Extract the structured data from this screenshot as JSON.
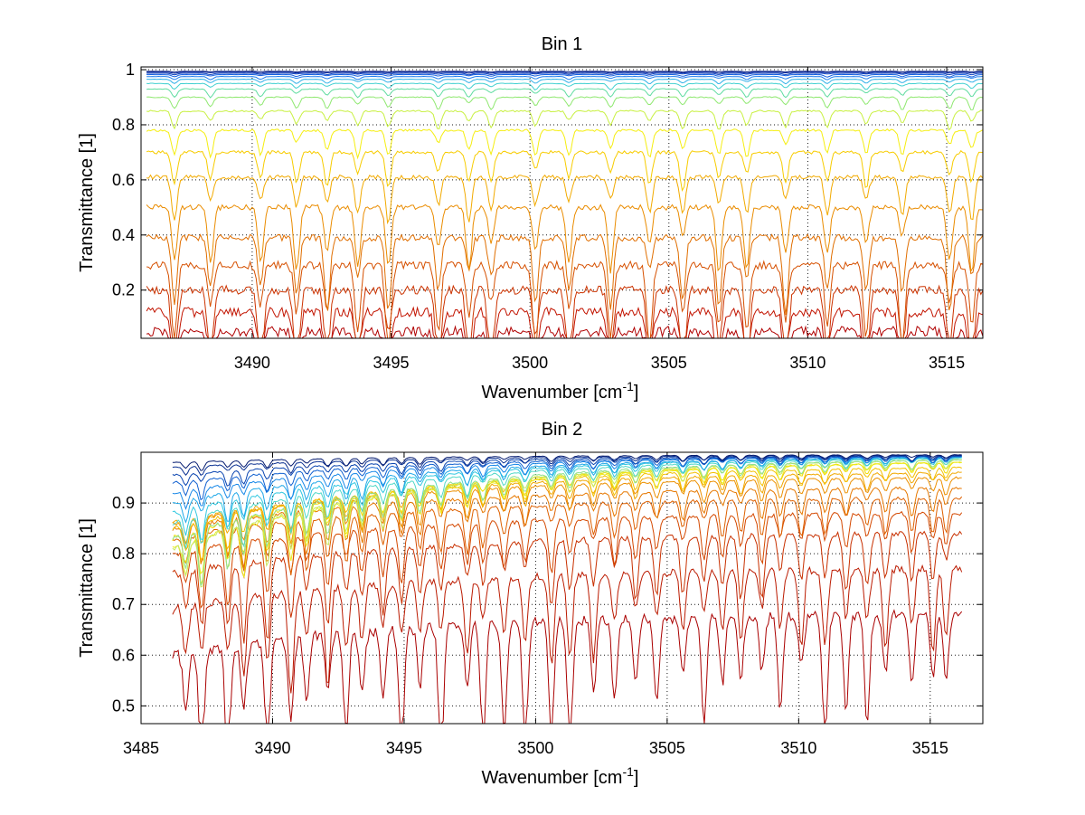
{
  "chart_data": [
    {
      "type": "line",
      "title": "Bin 1",
      "xlabel": "Wavenumber [cm",
      "xlabel_sup": "-1",
      "xlabel_close": "]",
      "ylabel": "Transmittance [1]",
      "xlim": [
        3486,
        3516.3
      ],
      "ylim": [
        0.025,
        1.01
      ],
      "xticks": [
        3490,
        3495,
        3500,
        3505,
        3510,
        3515
      ],
      "yticks": [
        0.2,
        0.4,
        0.6,
        0.8,
        1
      ],
      "ytick_labels": [
        "0.2",
        "0.4",
        "0.6",
        "0.8",
        "1"
      ],
      "grid": true,
      "legend": "none",
      "x_range": [
        3486.2,
        3516.3
      ],
      "absorption_lines": [
        3487.2,
        3488.5,
        3490.3,
        3491.6,
        3492.7,
        3493.8,
        3494.9,
        3496.7,
        3497.8,
        3498.6,
        3500.2,
        3501.4,
        3502.9,
        3504.3,
        3505.5,
        3506.8,
        3507.8,
        3509.2,
        3510.7,
        3512.1,
        3513.4,
        3515.1,
        3515.9
      ],
      "series_baseline": [
        0.05,
        0.12,
        0.2,
        0.29,
        0.39,
        0.5,
        0.61,
        0.7,
        0.78,
        0.85,
        0.9,
        0.93,
        0.95,
        0.965,
        0.975,
        0.982,
        0.987,
        0.991,
        0.994
      ],
      "series_colors": [
        "#b00000",
        "#c21400",
        "#cc3300",
        "#d65000",
        "#e06e00",
        "#ea8c00",
        "#f2aa00",
        "#f7cc00",
        "#f5ee10",
        "#c8f040",
        "#8fe870",
        "#5fdca0",
        "#40d0d0",
        "#2fb0e8",
        "#2080f0",
        "#1560e0",
        "#0c40c0",
        "#082aa0",
        "#061a80"
      ]
    },
    {
      "type": "line",
      "title": "Bin 2",
      "xlabel": "Wavenumber [cm",
      "xlabel_sup": "-1",
      "xlabel_close": "]",
      "ylabel": "Transmittance [1]",
      "xlim": [
        3485,
        3517
      ],
      "ylim": [
        0.465,
        1.0
      ],
      "xticks": [
        3485,
        3490,
        3495,
        3500,
        3505,
        3510,
        3515
      ],
      "yticks": [
        0.5,
        0.6,
        0.7,
        0.8,
        0.9
      ],
      "ytick_labels": [
        "0.5",
        "0.6",
        "0.7",
        "0.8",
        "0.9"
      ],
      "grid": true,
      "legend": "none",
      "x_range": [
        3486.2,
        3516.2
      ],
      "absorption_lines": [
        3486.7,
        3487.3,
        3488.3,
        3488.9,
        3489.8,
        3490.7,
        3491.3,
        3492.1,
        3492.8,
        3493.4,
        3494.2,
        3494.9,
        3495.6,
        3496.4,
        3497.4,
        3498.0,
        3498.8,
        3499.6,
        3500.6,
        3501.3,
        3502.2,
        3503.0,
        3503.8,
        3504.6,
        3505.6,
        3506.4,
        3507.1,
        3507.8,
        3508.6,
        3509.3,
        3510.1,
        3511.0,
        3511.8,
        3512.6,
        3513.3,
        3514.3,
        3515.1,
        3515.6
      ],
      "series_start_end": [
        [
          0.6,
          0.68
        ],
        [
          0.69,
          0.77
        ],
        [
          0.76,
          0.84
        ],
        [
          0.8,
          0.88
        ],
        [
          0.83,
          0.91
        ],
        [
          0.85,
          0.93
        ],
        [
          0.86,
          0.95
        ],
        [
          0.86,
          0.96
        ],
        [
          0.85,
          0.97
        ],
        [
          0.83,
          0.98
        ],
        [
          0.81,
          0.98
        ],
        [
          0.81,
          0.985
        ],
        [
          0.83,
          0.985
        ],
        [
          0.86,
          0.988
        ],
        [
          0.88,
          0.99
        ],
        [
          0.9,
          0.99
        ],
        [
          0.92,
          0.992
        ],
        [
          0.94,
          0.992
        ],
        [
          0.955,
          0.993
        ],
        [
          0.97,
          0.994
        ],
        [
          0.98,
          0.995
        ]
      ],
      "series_colors": [
        "#aa0000",
        "#bb1a00",
        "#c83000",
        "#d44800",
        "#de6000",
        "#e67800",
        "#ec9000",
        "#f0a800",
        "#f4c000",
        "#f0dc00",
        "#ecec20",
        "#c8e860",
        "#90e090",
        "#50d8c8",
        "#30c8e0",
        "#20a8e8",
        "#1888e8",
        "#1060d0",
        "#0a44b0",
        "#082e90",
        "#061c70"
      ]
    }
  ]
}
